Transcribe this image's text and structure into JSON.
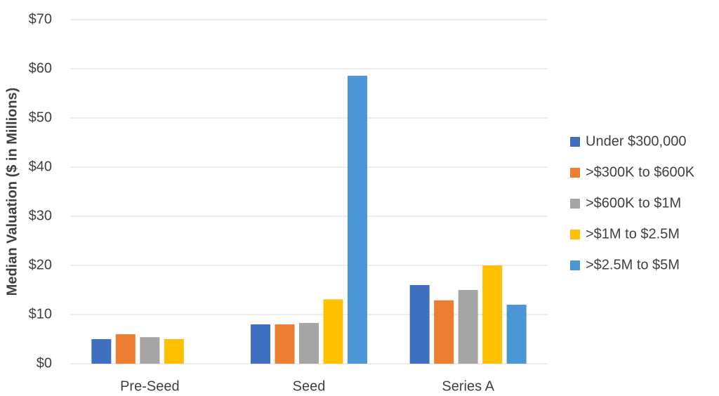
{
  "chart_data": {
    "type": "bar",
    "y_label": "Median Valuation ($ in Millions)",
    "categories": [
      "Pre-Seed",
      "Seed",
      "Series A"
    ],
    "series": [
      {
        "name": "Under $300,000",
        "color": "#3f6fc0",
        "values": [
          5.0,
          8.0,
          16.0
        ]
      },
      {
        "name": ">$300K to $600K",
        "color": "#ed7d31",
        "values": [
          6.0,
          8.0,
          12.9
        ]
      },
      {
        "name": ">$600K to $1M",
        "color": "#a5a5a5",
        "values": [
          5.4,
          8.3,
          15.0
        ]
      },
      {
        "name": ">$1M to $2.5M",
        "color": "#ffc000",
        "values": [
          5.0,
          13.1,
          20.0
        ]
      },
      {
        "name": ">$2.5M to $5M",
        "color": "#4a96d6",
        "values": [
          null,
          58.6,
          12.0
        ]
      }
    ],
    "ylim": [
      0,
      70
    ],
    "yticks": [
      {
        "value": 0,
        "label": "$0"
      },
      {
        "value": 10,
        "label": "$10"
      },
      {
        "value": 20,
        "label": "$20"
      },
      {
        "value": 30,
        "label": "$30"
      },
      {
        "value": 40,
        "label": "$40"
      },
      {
        "value": 50,
        "label": "$50"
      },
      {
        "value": 60,
        "label": "$60"
      },
      {
        "value": 70,
        "label": "$70"
      }
    ],
    "grid": true,
    "legend": "right"
  }
}
